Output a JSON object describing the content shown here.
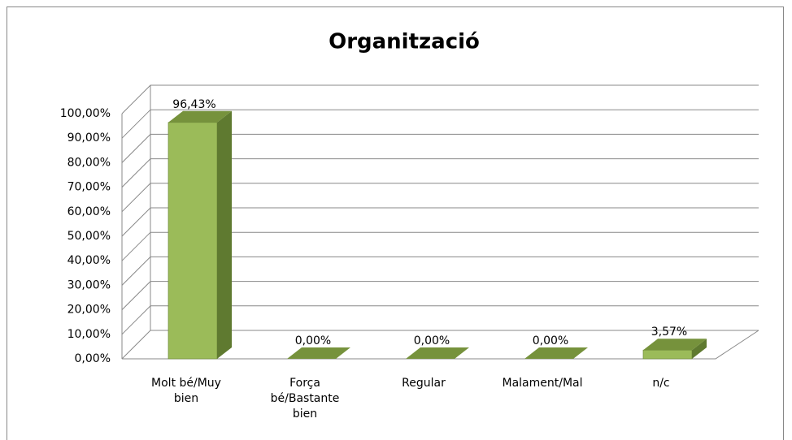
{
  "chart_data": {
    "type": "bar3d",
    "title": "Organització",
    "categories": [
      "Molt bé/Muy bien",
      "Força bé/Bastante bien",
      "Regular",
      "Malament/Mal",
      "n/c"
    ],
    "values": [
      96.43,
      0,
      0,
      0,
      3.57
    ],
    "value_labels": [
      "96,43%",
      "0,00%",
      "0,00%",
      "0,00%",
      "3,57%"
    ],
    "color": "#9bbb59",
    "ylim": [
      0,
      100
    ],
    "yticks": [
      {
        "value": 0,
        "label": "0,00%"
      },
      {
        "value": 10,
        "label": "10,00%"
      },
      {
        "value": 20,
        "label": "20,00%"
      },
      {
        "value": 30,
        "label": "30,00%"
      },
      {
        "value": 40,
        "label": "40,00%"
      },
      {
        "value": 50,
        "label": "50,00%"
      },
      {
        "value": 60,
        "label": "60,00%"
      },
      {
        "value": 70,
        "label": "70,00%"
      },
      {
        "value": 80,
        "label": "80,00%"
      },
      {
        "value": 90,
        "label": "90,00%"
      },
      {
        "value": 100,
        "label": "100,00%"
      }
    ],
    "grid": true
  }
}
